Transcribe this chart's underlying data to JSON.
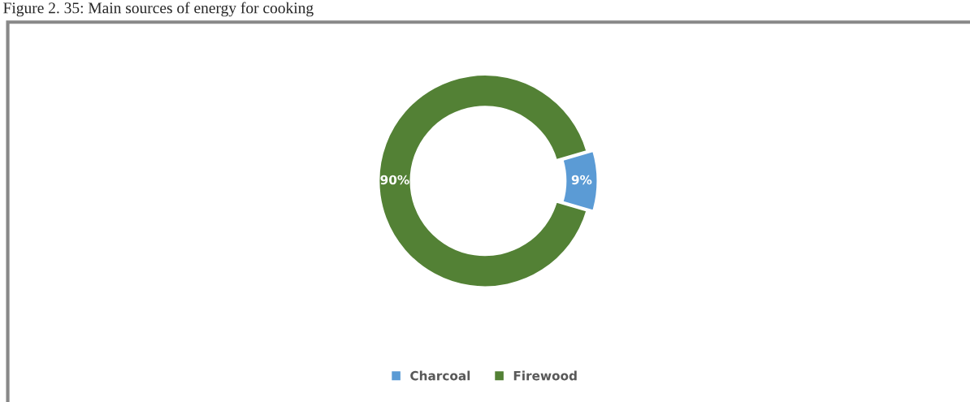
{
  "chart_data": {
    "type": "donut",
    "title": "Figure 2. 35: Main sources of energy for cooking",
    "categories": [
      "Charcoal",
      "Firewood"
    ],
    "values": [
      9,
      90
    ],
    "colors": [
      "#5b9bd5",
      "#538135"
    ],
    "value_labels": [
      "9%",
      "90%"
    ],
    "legend": "bottom"
  }
}
